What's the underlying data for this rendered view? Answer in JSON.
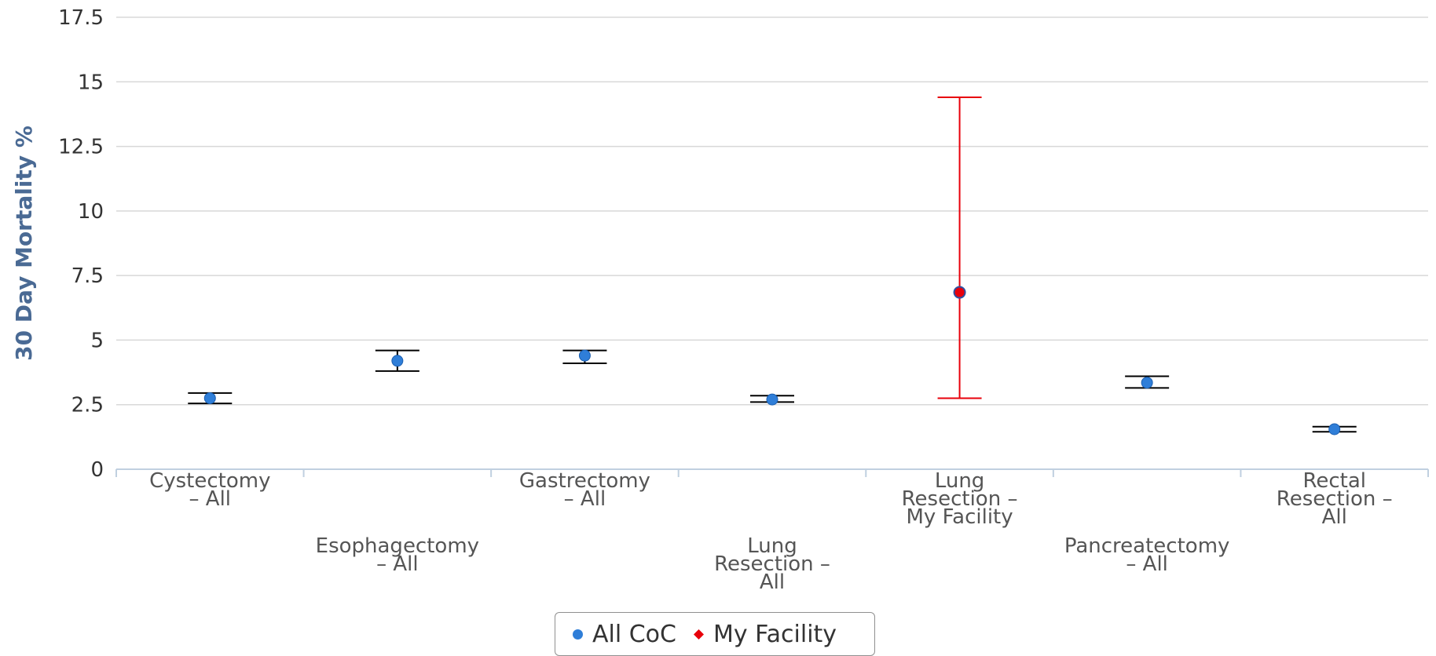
{
  "chart_data": {
    "type": "scatter",
    "ylabel": "30 Day Mortality %",
    "ylim": [
      0,
      17.5
    ],
    "yticks": [
      "0",
      "2.5",
      "5",
      "7.5",
      "10",
      "12.5",
      "15",
      "17.5"
    ],
    "grid": true,
    "legend_position": "bottom-center",
    "categories": [
      [
        "Cystectomy",
        "– All"
      ],
      [
        "Esophagectomy",
        "– All"
      ],
      [
        "Gastrectomy",
        "– All"
      ],
      [
        "Lung",
        "Resection –",
        "All"
      ],
      [
        "Lung",
        "Resection –",
        "My Facility"
      ],
      [
        "Pancreatectomy",
        "– All"
      ],
      [
        "Rectal",
        "Resection –",
        "All"
      ]
    ],
    "series": [
      {
        "name": "All CoC",
        "color": "#2f7ed8",
        "marker": "circle",
        "points": [
          {
            "category_index": 0,
            "value": 2.75,
            "low": 2.55,
            "high": 2.95
          },
          {
            "category_index": 1,
            "value": 4.2,
            "low": 3.8,
            "high": 4.6
          },
          {
            "category_index": 2,
            "value": 4.4,
            "low": 4.1,
            "high": 4.6
          },
          {
            "category_index": 3,
            "value": 2.7,
            "low": 2.6,
            "high": 2.85
          },
          {
            "category_index": 5,
            "value": 3.35,
            "low": 3.15,
            "high": 3.6
          },
          {
            "category_index": 6,
            "value": 1.55,
            "low": 1.45,
            "high": 1.65
          }
        ]
      },
      {
        "name": "My Facility",
        "color": "#e8000b",
        "marker": "diamond",
        "points": [
          {
            "category_index": 4,
            "value": 6.85,
            "low": 2.75,
            "high": 14.4
          }
        ]
      }
    ]
  },
  "colors": {
    "grid": "#d8d8d8",
    "axis": "#c0d0e0",
    "errorbar_allcoc": "#000000",
    "errorbar_facility": "#e8000b",
    "axis_title": "#4a6a94"
  }
}
